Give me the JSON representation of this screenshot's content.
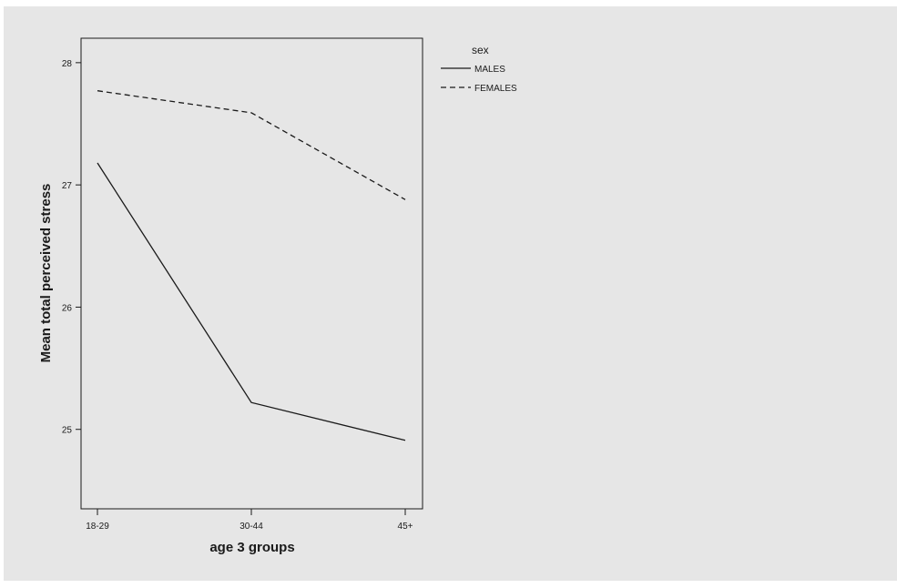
{
  "chart_data": {
    "type": "line",
    "title": "",
    "xlabel": "age 3 groups",
    "ylabel": "Mean total perceived stress",
    "categories": [
      "18-29",
      "30-44",
      "45+"
    ],
    "series": [
      {
        "name": "MALES",
        "values": [
          27.18,
          25.22,
          24.91
        ],
        "style": "solid"
      },
      {
        "name": "FEMALES",
        "values": [
          27.77,
          27.59,
          26.88
        ],
        "style": "dashed"
      }
    ],
    "ylim": [
      24.35,
      28.2
    ],
    "yticks": [
      25,
      26,
      27,
      28
    ],
    "legend": {
      "title": "sex",
      "position": "right"
    },
    "grid": false,
    "colors": {
      "background": "#e6e6e6",
      "line": "#1a1a1a"
    }
  }
}
